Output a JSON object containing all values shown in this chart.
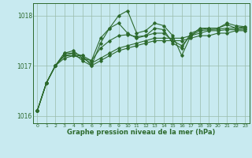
{
  "title": "Graphe pression niveau de la mer (hPa)",
  "bg_color": "#c8eaf0",
  "grid_color": "#99bbaa",
  "line_color": "#2d6a2d",
  "ylim": [
    1015.85,
    1018.25
  ],
  "xlim": [
    -0.5,
    23.5
  ],
  "yticks": [
    1016,
    1017,
    1018
  ],
  "xticks": [
    0,
    1,
    2,
    3,
    4,
    5,
    6,
    7,
    8,
    9,
    10,
    11,
    12,
    13,
    14,
    15,
    16,
    17,
    18,
    19,
    20,
    21,
    22,
    23
  ],
  "series": [
    [
      1016.1,
      1016.65,
      1017.0,
      1017.15,
      1017.2,
      1017.2,
      1017.0,
      1017.1,
      1017.2,
      1017.3,
      1017.35,
      1017.4,
      1017.45,
      1017.5,
      1017.5,
      1017.5,
      1017.5,
      1017.55,
      1017.6,
      1017.6,
      1017.65,
      1017.65,
      1017.7,
      1017.7
    ],
    [
      1016.1,
      1016.65,
      1017.0,
      1017.2,
      1017.2,
      1017.15,
      1017.05,
      1017.15,
      1017.25,
      1017.35,
      1017.4,
      1017.45,
      1017.5,
      1017.55,
      1017.55,
      1017.55,
      1017.55,
      1017.6,
      1017.65,
      1017.7,
      1017.7,
      1017.72,
      1017.72,
      1017.73
    ],
    [
      1016.1,
      1016.65,
      1017.0,
      1017.2,
      1017.25,
      1017.2,
      1017.1,
      1017.35,
      1017.5,
      1017.6,
      1017.62,
      1017.58,
      1017.6,
      1017.65,
      1017.65,
      1017.5,
      1017.4,
      1017.6,
      1017.7,
      1017.72,
      1017.73,
      1017.75,
      1017.75,
      1017.75
    ],
    [
      1016.1,
      1016.65,
      1017.0,
      1017.25,
      1017.3,
      1017.15,
      1017.1,
      1017.55,
      1017.75,
      1017.85,
      1017.65,
      1017.55,
      1017.6,
      1017.75,
      1017.72,
      1017.45,
      1017.35,
      1017.65,
      1017.72,
      1017.75,
      1017.75,
      1017.82,
      1017.75,
      1017.78
    ],
    [
      1016.1,
      1016.65,
      1017.0,
      1017.25,
      1017.25,
      1017.1,
      1017.0,
      1017.45,
      1017.75,
      1018.0,
      1018.1,
      1017.65,
      1017.7,
      1017.85,
      1017.8,
      1017.6,
      1017.2,
      1017.6,
      1017.75,
      1017.75,
      1017.75,
      1017.85,
      1017.8,
      1017.78
    ]
  ]
}
